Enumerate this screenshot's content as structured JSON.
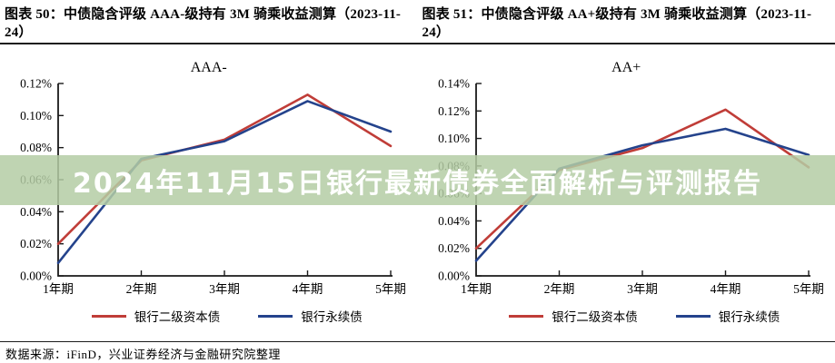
{
  "page": {
    "footer_source": "数据来源：iFinD，兴业证券经济与金融研究院整理",
    "rule_color": "#1c1c1c"
  },
  "banner": {
    "text": "2024年11月15日银行最新债券全面解析与评测报告",
    "bg_color": "rgba(180,204,165,0.85)",
    "text_color": "#ffffff"
  },
  "chart_data": [
    {
      "type": "line",
      "figure_label": "图表 50：中债隐含评级 AAA-级持有 3M 骑乘收益测算（2023-11-24）",
      "title": "AAA-",
      "categories": [
        "1年期",
        "2年期",
        "3年期",
        "4年期",
        "5年期"
      ],
      "series": [
        {
          "name": "银行二级资本债",
          "color": "#c03d38",
          "values": [
            0.02,
            0.072,
            0.085,
            0.113,
            0.081
          ]
        },
        {
          "name": "银行永续债",
          "color": "#24438c",
          "values": [
            0.008,
            0.073,
            0.084,
            0.109,
            0.09
          ]
        }
      ],
      "xlabel": "",
      "ylabel": "",
      "ylim": [
        0,
        0.12
      ],
      "ytick_step": 0.02,
      "ytick_format": "0.00%",
      "grid": false,
      "legend_position": "bottom",
      "axis_color": "#1a1a1a"
    },
    {
      "type": "line",
      "figure_label": "图表 51：中债隐含评级 AA+级持有 3M 骑乘收益测算（2023-11-24）",
      "title": "AA+",
      "categories": [
        "1年期",
        "2年期",
        "3年期",
        "4年期",
        "5年期"
      ],
      "series": [
        {
          "name": "银行二级资本债",
          "color": "#c03d38",
          "values": [
            0.02,
            0.077,
            0.093,
            0.121,
            0.079
          ]
        },
        {
          "name": "银行永续债",
          "color": "#24438c",
          "values": [
            0.011,
            0.078,
            0.095,
            0.107,
            0.088
          ]
        }
      ],
      "xlabel": "",
      "ylabel": "",
      "ylim": [
        0,
        0.14
      ],
      "ytick_step": 0.02,
      "ytick_format": "0.00%",
      "grid": false,
      "legend_position": "bottom",
      "axis_color": "#1a1a1a"
    }
  ]
}
